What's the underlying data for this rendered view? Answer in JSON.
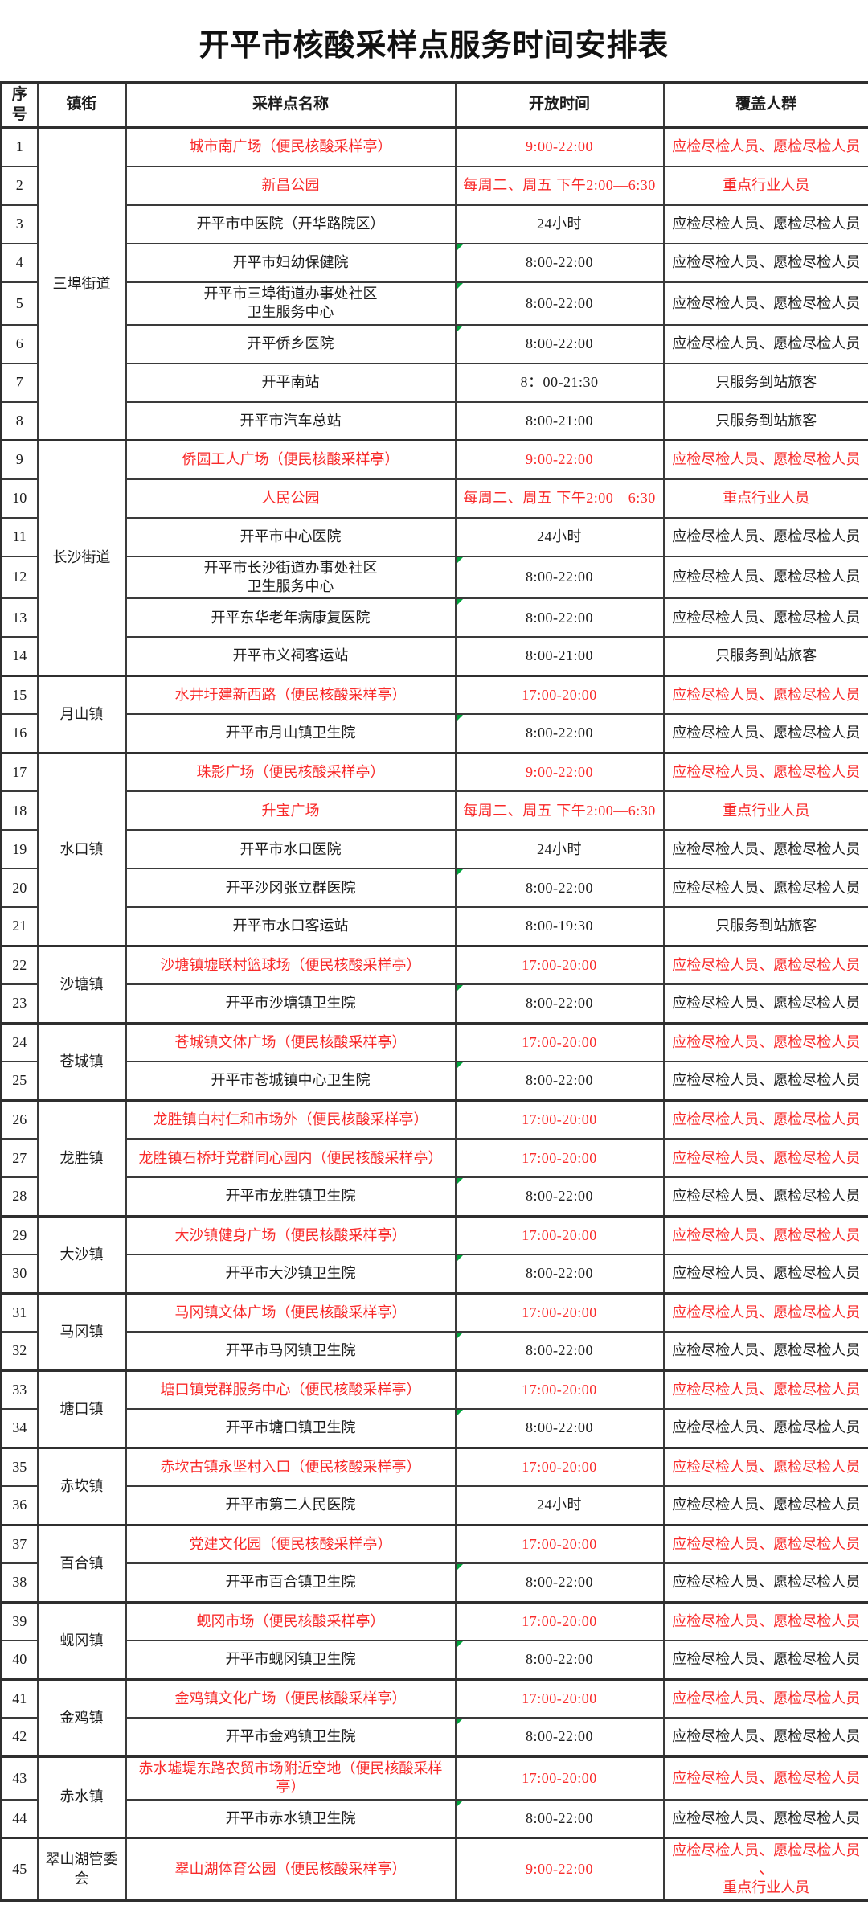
{
  "title": "开平市核酸采样点服务时间安排表",
  "colors": {
    "highlight_red": "#f92a2a",
    "flag_green": "#00a53c",
    "border": "#3a3a3a",
    "text": "#1c1c1c"
  },
  "table": {
    "headers": [
      "序号",
      "镇街",
      "采样点名称",
      "开放时间",
      "覆盖人群"
    ],
    "groups": [
      {
        "town": "三埠街道",
        "rows": [
          {
            "no": 1,
            "name": "城市南广场（便民核酸采样亭）",
            "time": "9:00-22:00",
            "coverage": "应检尽检人员、愿检尽检人员",
            "red": true
          },
          {
            "no": 2,
            "name": "新昌公园",
            "time": "每周二、周五 下午2:00—6:30",
            "coverage": "重点行业人员",
            "red": true
          },
          {
            "no": 3,
            "name": "开平市中医院（开华路院区）",
            "time": "24小时",
            "coverage": "应检尽检人员、愿检尽检人员"
          },
          {
            "no": 4,
            "name": "开平市妇幼保健院",
            "time": "8:00-22:00",
            "coverage": "应检尽检人员、愿检尽检人员",
            "marker": true
          },
          {
            "no": 5,
            "name": "开平市三埠街道办事处社区\n卫生服务中心",
            "time": "8:00-22:00",
            "coverage": "应检尽检人员、愿检尽检人员",
            "marker": true
          },
          {
            "no": 6,
            "name": "开平侨乡医院",
            "time": "8:00-22:00",
            "coverage": "应检尽检人员、愿检尽检人员",
            "marker": true
          },
          {
            "no": 7,
            "name": "开平南站",
            "time": "8：00-21:30",
            "coverage": "只服务到站旅客"
          },
          {
            "no": 8,
            "name": "开平市汽车总站",
            "time": "8:00-21:00",
            "coverage": "只服务到站旅客"
          }
        ]
      },
      {
        "town": "长沙街道",
        "rows": [
          {
            "no": 9,
            "name": "侨园工人广场（便民核酸采样亭）",
            "time": "9:00-22:00",
            "coverage": "应检尽检人员、愿检尽检人员",
            "red": true
          },
          {
            "no": 10,
            "name": "人民公园",
            "time": "每周二、周五 下午2:00—6:30",
            "coverage": "重点行业人员",
            "red": true
          },
          {
            "no": 11,
            "name": "开平市中心医院",
            "time": "24小时",
            "coverage": "应检尽检人员、愿检尽检人员"
          },
          {
            "no": 12,
            "name": "开平市长沙街道办事处社区\n卫生服务中心",
            "time": "8:00-22:00",
            "coverage": "应检尽检人员、愿检尽检人员",
            "marker": true
          },
          {
            "no": 13,
            "name": "开平东华老年病康复医院",
            "time": "8:00-22:00",
            "coverage": "应检尽检人员、愿检尽检人员",
            "marker": true
          },
          {
            "no": 14,
            "name": "开平市义祠客运站",
            "time": "8:00-21:00",
            "coverage": "只服务到站旅客"
          }
        ]
      },
      {
        "town": "月山镇",
        "rows": [
          {
            "no": 15,
            "name": "水井圩建新西路（便民核酸采样亭）",
            "time": "17:00-20:00",
            "coverage": "应检尽检人员、愿检尽检人员",
            "red": true
          },
          {
            "no": 16,
            "name": "开平市月山镇卫生院",
            "time": "8:00-22:00",
            "coverage": "应检尽检人员、愿检尽检人员",
            "marker": true
          }
        ]
      },
      {
        "town": "水口镇",
        "rows": [
          {
            "no": 17,
            "name": "珠影广场（便民核酸采样亭）",
            "time": "9:00-22:00",
            "coverage": "应检尽检人员、愿检尽检人员",
            "red": true
          },
          {
            "no": 18,
            "name": "升宝广场",
            "time": "每周二、周五 下午2:00—6:30",
            "coverage": "重点行业人员",
            "red": true
          },
          {
            "no": 19,
            "name": "开平市水口医院",
            "time": "24小时",
            "coverage": "应检尽检人员、愿检尽检人员"
          },
          {
            "no": 20,
            "name": "开平沙冈张立群医院",
            "time": "8:00-22:00",
            "coverage": "应检尽检人员、愿检尽检人员",
            "marker": true
          },
          {
            "no": 21,
            "name": "开平市水口客运站",
            "time": "8:00-19:30",
            "coverage": "只服务到站旅客"
          }
        ]
      },
      {
        "town": "沙塘镇",
        "rows": [
          {
            "no": 22,
            "name": "沙塘镇墟联村篮球场（便民核酸采样亭）",
            "time": "17:00-20:00",
            "coverage": "应检尽检人员、愿检尽检人员",
            "red": true
          },
          {
            "no": 23,
            "name": "开平市沙塘镇卫生院",
            "time": "8:00-22:00",
            "coverage": "应检尽检人员、愿检尽检人员",
            "marker": true
          }
        ]
      },
      {
        "town": "苍城镇",
        "rows": [
          {
            "no": 24,
            "name": "苍城镇文体广场（便民核酸采样亭）",
            "time": "17:00-20:00",
            "coverage": "应检尽检人员、愿检尽检人员",
            "red": true
          },
          {
            "no": 25,
            "name": "开平市苍城镇中心卫生院",
            "time": "8:00-22:00",
            "coverage": "应检尽检人员、愿检尽检人员",
            "marker": true
          }
        ]
      },
      {
        "town": "龙胜镇",
        "rows": [
          {
            "no": 26,
            "name": "龙胜镇白村仁和市场外（便民核酸采样亭）",
            "time": "17:00-20:00",
            "coverage": "应检尽检人员、愿检尽检人员",
            "red": true
          },
          {
            "no": 27,
            "name": "龙胜镇石桥圩党群同心园内（便民核酸采样亭）",
            "time": "17:00-20:00",
            "coverage": "应检尽检人员、愿检尽检人员",
            "red": true
          },
          {
            "no": 28,
            "name": "开平市龙胜镇卫生院",
            "time": "8:00-22:00",
            "coverage": "应检尽检人员、愿检尽检人员",
            "marker": true
          }
        ]
      },
      {
        "town": "大沙镇",
        "rows": [
          {
            "no": 29,
            "name": "大沙镇健身广场（便民核酸采样亭）",
            "time": "17:00-20:00",
            "coverage": "应检尽检人员、愿检尽检人员",
            "red": true
          },
          {
            "no": 30,
            "name": "开平市大沙镇卫生院",
            "time": "8:00-22:00",
            "coverage": "应检尽检人员、愿检尽检人员",
            "marker": true
          }
        ]
      },
      {
        "town": "马冈镇",
        "rows": [
          {
            "no": 31,
            "name": "马冈镇文体广场（便民核酸采样亭）",
            "time": "17:00-20:00",
            "coverage": "应检尽检人员、愿检尽检人员",
            "red": true
          },
          {
            "no": 32,
            "name": "开平市马冈镇卫生院",
            "time": "8:00-22:00",
            "coverage": "应检尽检人员、愿检尽检人员",
            "marker": true
          }
        ]
      },
      {
        "town": "塘口镇",
        "rows": [
          {
            "no": 33,
            "name": "塘口镇党群服务中心（便民核酸采样亭）",
            "time": "17:00-20:00",
            "coverage": "应检尽检人员、愿检尽检人员",
            "red": true
          },
          {
            "no": 34,
            "name": "开平市塘口镇卫生院",
            "time": "8:00-22:00",
            "coverage": "应检尽检人员、愿检尽检人员",
            "marker": true
          }
        ]
      },
      {
        "town": "赤坎镇",
        "rows": [
          {
            "no": 35,
            "name": "赤坎古镇永坚村入口（便民核酸采样亭）",
            "time": "17:00-20:00",
            "coverage": "应检尽检人员、愿检尽检人员",
            "red": true
          },
          {
            "no": 36,
            "name": "开平市第二人民医院",
            "time": "24小时",
            "coverage": "应检尽检人员、愿检尽检人员"
          }
        ]
      },
      {
        "town": "百合镇",
        "rows": [
          {
            "no": 37,
            "name": "党建文化园（便民核酸采样亭）",
            "time": "17:00-20:00",
            "coverage": "应检尽检人员、愿检尽检人员",
            "red": true
          },
          {
            "no": 38,
            "name": "开平市百合镇卫生院",
            "time": "8:00-22:00",
            "coverage": "应检尽检人员、愿检尽检人员",
            "marker": true
          }
        ]
      },
      {
        "town": "蚬冈镇",
        "rows": [
          {
            "no": 39,
            "name": "蚬冈市场（便民核酸采样亭）",
            "time": "17:00-20:00",
            "coverage": "应检尽检人员、愿检尽检人员",
            "red": true
          },
          {
            "no": 40,
            "name": "开平市蚬冈镇卫生院",
            "time": "8:00-22:00",
            "coverage": "应检尽检人员、愿检尽检人员",
            "marker": true
          }
        ]
      },
      {
        "town": "金鸡镇",
        "rows": [
          {
            "no": 41,
            "name": "金鸡镇文化广场（便民核酸采样亭）",
            "time": "17:00-20:00",
            "coverage": "应检尽检人员、愿检尽检人员",
            "red": true
          },
          {
            "no": 42,
            "name": "开平市金鸡镇卫生院",
            "time": "8:00-22:00",
            "coverage": "应检尽检人员、愿检尽检人员",
            "marker": true
          }
        ]
      },
      {
        "town": "赤水镇",
        "rows": [
          {
            "no": 43,
            "name": "赤水墟堤东路农贸市场附近空地（便民核酸采样亭）",
            "time": "17:00-20:00",
            "coverage": "应检尽检人员、愿检尽检人员",
            "red": true
          },
          {
            "no": 44,
            "name": "开平市赤水镇卫生院",
            "time": "8:00-22:00",
            "coverage": "应检尽检人员、愿检尽检人员",
            "marker": true
          }
        ]
      },
      {
        "town": "翠山湖管委会",
        "rows": [
          {
            "no": 45,
            "name": "翠山湖体育公园（便民核酸采样亭）",
            "time": "9:00-22:00",
            "coverage": "应检尽检人员、愿检尽检人员\n、\n重点行业人员",
            "red": true,
            "h": 78
          }
        ]
      }
    ]
  }
}
